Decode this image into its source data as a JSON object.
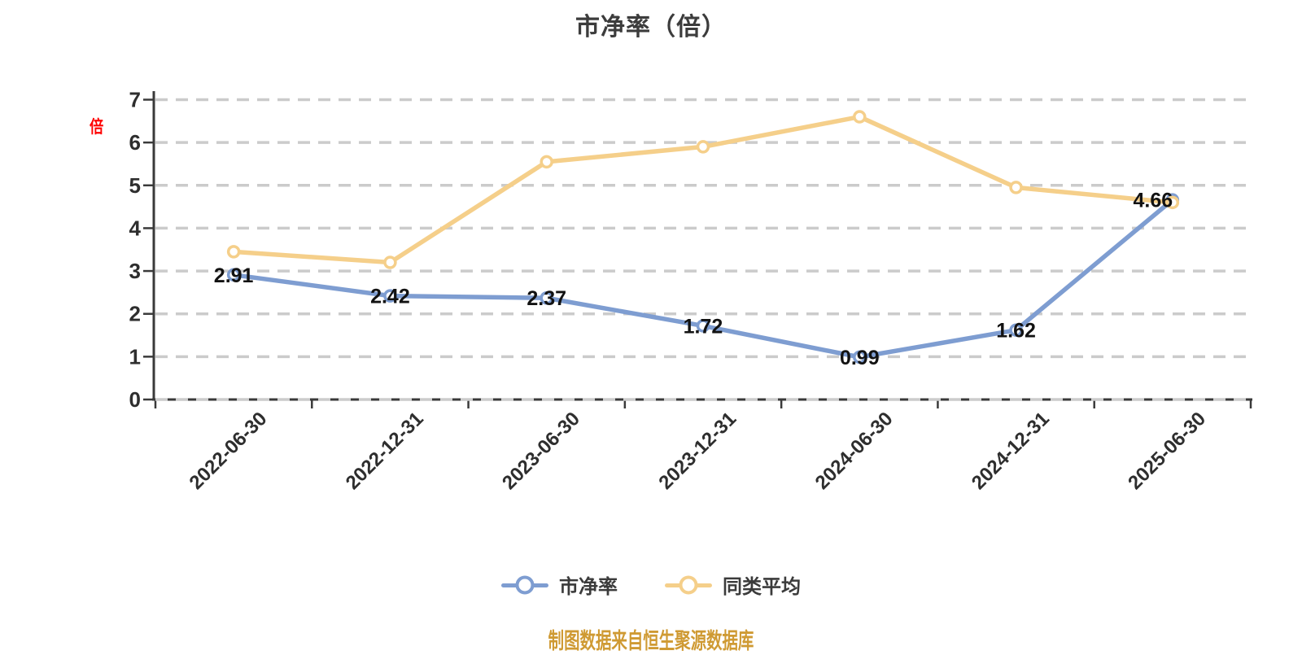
{
  "title": "市净率（倍）",
  "y_axis_unit_label": "倍",
  "chart_data": {
    "type": "line",
    "title": "市净率（倍）",
    "categories": [
      "2022-06-30",
      "2022-12-31",
      "2023-06-30",
      "2023-12-31",
      "2024-06-30",
      "2024-12-31",
      "2025-06-30"
    ],
    "series": [
      {
        "name": "市净率",
        "color": "#7e9dd1",
        "values": [
          2.91,
          2.42,
          2.37,
          1.72,
          0.99,
          1.62,
          4.66
        ],
        "point_labels": [
          "2.91",
          "2.42",
          "2.37",
          "1.72",
          "0.99",
          "1.62",
          "4.66"
        ],
        "labels_visible": true
      },
      {
        "name": "同类平均",
        "color": "#f5cf8a",
        "values": [
          3.45,
          3.2,
          5.55,
          5.9,
          6.6,
          4.95,
          4.6
        ],
        "point_labels": [],
        "labels_visible": false
      }
    ],
    "ylim": [
      0,
      7
    ],
    "y_ticks": [
      "0",
      "1",
      "2",
      "3",
      "4",
      "5",
      "6",
      "7"
    ],
    "grid": "horizontal-dashed",
    "grid_color": "#cbcbcb",
    "axis_color": "#3a3a3a",
    "tick_label_color": "#2e2e2e",
    "value_label_color": "#121212",
    "marker_fill": "#ffffff",
    "x_label_rotation": -45,
    "legend_position": "bottom",
    "label_dx": [
      0,
      0,
      0,
      0,
      0,
      0,
      -24
    ]
  },
  "legend": {
    "items": [
      {
        "label": "市净率",
        "color": "#7e9dd1"
      },
      {
        "label": "同类平均",
        "color": "#f5cf8a"
      }
    ]
  },
  "footer": {
    "text": "制图数据来自恒生聚源数据库",
    "color": "#cf9a33"
  }
}
